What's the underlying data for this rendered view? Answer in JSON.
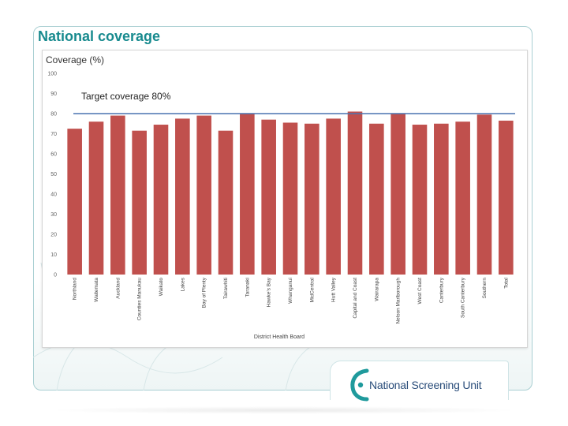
{
  "slide": {
    "title": "National coverage"
  },
  "logo": {
    "text": "National Screening Unit"
  },
  "colors": {
    "title": "#178a8e",
    "bar": "#c0504d",
    "target_line": "#4a74b0",
    "logo_text": "#2a4d7a",
    "logo_accent": "#1f9a9c"
  },
  "chart_data": {
    "type": "bar",
    "title": "Coverage (%)",
    "xlabel": "District Health Board",
    "ylabel": "Coverage (%)",
    "ylim": [
      0,
      100
    ],
    "yticks": [
      0,
      10,
      20,
      30,
      40,
      50,
      60,
      70,
      80,
      90,
      100
    ],
    "target": {
      "label": "Target coverage 80%",
      "value": 80
    },
    "categories": [
      "Northland",
      "Waitemata",
      "Auckland",
      "Counties Manukau",
      "Waikato",
      "Lakes",
      "Bay of Plenty",
      "Tairawhiti",
      "Taranaki",
      "Hawke's Bay",
      "Whanganui",
      "MidCentral",
      "Hutt Valley",
      "Capital and Coast",
      "Wairarapa",
      "Nelson Marlborough",
      "West Coast",
      "Canterbury",
      "South Canterbury",
      "Southern",
      "Total"
    ],
    "values": [
      72.5,
      76,
      79,
      71.5,
      74.5,
      77.5,
      79,
      71.5,
      80,
      77,
      75.5,
      75,
      77.5,
      81,
      75,
      80,
      74.5,
      75,
      76,
      79.5,
      76.5
    ]
  }
}
